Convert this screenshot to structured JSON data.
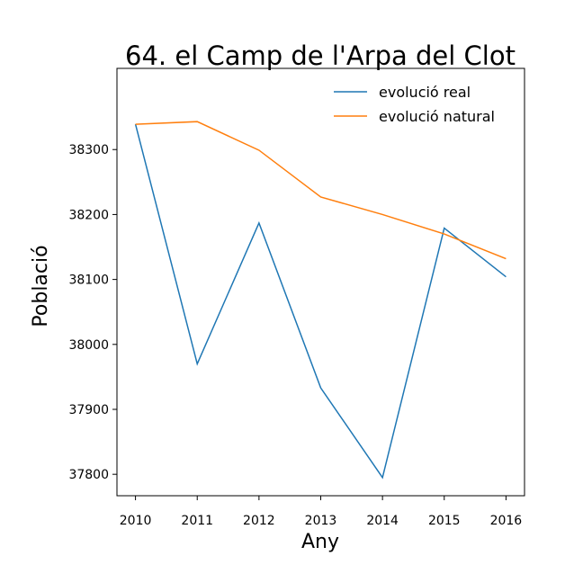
{
  "chart_data": {
    "type": "line",
    "title": "64. el Camp de l'Arpa del Clot",
    "xlabel": "Any",
    "ylabel": "Població",
    "x": [
      2010,
      2011,
      2012,
      2013,
      2014,
      2015,
      2016
    ],
    "x_tick_labels": [
      "2010",
      "2011",
      "2012",
      "2013",
      "2014",
      "2015",
      "2016"
    ],
    "y_ticks": [
      37800,
      37900,
      38000,
      38100,
      38200,
      38300
    ],
    "y_tick_labels": [
      "37800",
      "37900",
      "38000",
      "38100",
      "38200",
      "38300"
    ],
    "xlim": [
      2009.7,
      2016.3
    ],
    "ylim": [
      37767,
      38425
    ],
    "grid": false,
    "legend_position": "top-right",
    "series": [
      {
        "name": "evolució real",
        "color": "#1f77b4",
        "values": [
          38339,
          37970,
          38187,
          37933,
          37795,
          38179,
          38104
        ]
      },
      {
        "name": "evolució natural",
        "color": "#ff7f0e",
        "values": [
          38339,
          38343,
          38299,
          38227,
          38200,
          38170,
          38132
        ]
      }
    ]
  }
}
